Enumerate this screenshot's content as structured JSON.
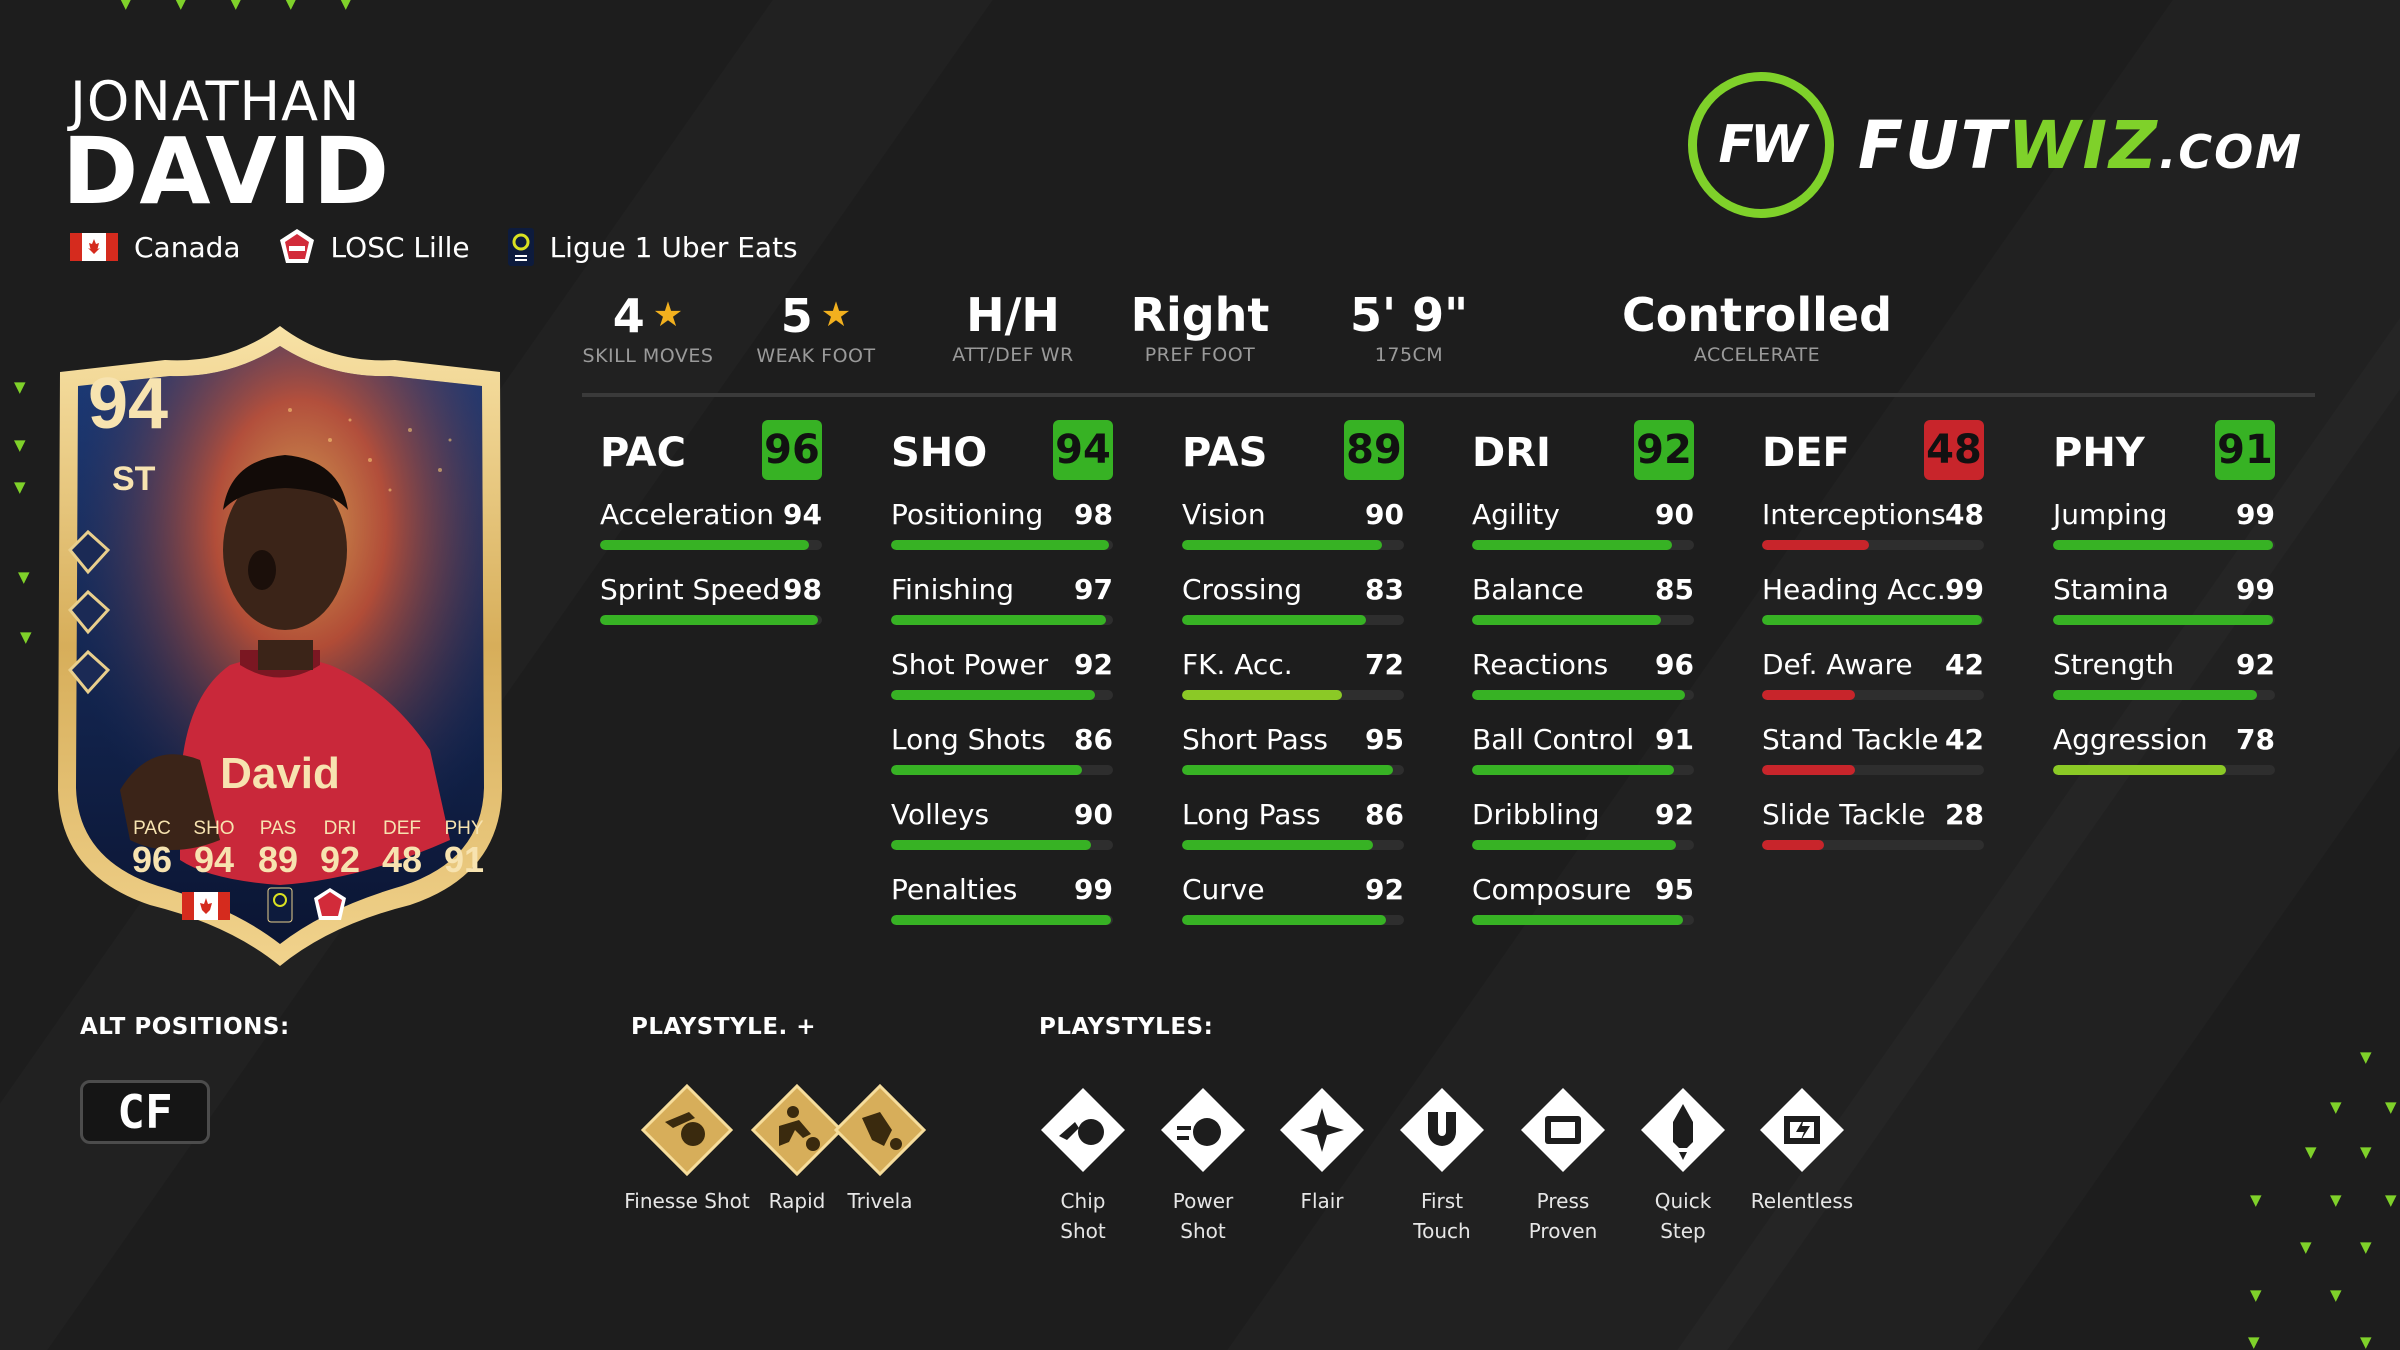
{
  "player": {
    "first_name": "JONATHAN",
    "last_name": "DAVID",
    "nation": "Canada",
    "club": "LOSC Lille",
    "league": "Ligue 1 Uber Eats"
  },
  "logo": {
    "part1": "FUT",
    "part2": "WIZ",
    "part3": ".COM",
    "mark": "FW"
  },
  "info": [
    {
      "value": "4",
      "star": true,
      "label": "SKILL MOVES"
    },
    {
      "value": "5",
      "star": true,
      "label": "WEAK FOOT"
    },
    {
      "value": "H/H",
      "star": false,
      "label": "ATT/DEF WR"
    },
    {
      "value": "Right",
      "star": false,
      "label": "PREF FOOT"
    },
    {
      "value": "5' 9\"",
      "star": false,
      "label": "175CM"
    },
    {
      "value": "Controlled",
      "star": false,
      "label": "ACCELERATE"
    }
  ],
  "colors": {
    "green": "#37b224",
    "lime": "#8bc926",
    "red": "#c8252b",
    "accent": "#7fd12a",
    "star": "#f2b01e"
  },
  "columns": [
    {
      "name": "PAC",
      "value": "96",
      "color": "green",
      "stats": [
        {
          "name": "Acceleration",
          "value": "94"
        },
        {
          "name": "Sprint Speed",
          "value": "98"
        }
      ]
    },
    {
      "name": "SHO",
      "value": "94",
      "color": "green",
      "stats": [
        {
          "name": "Positioning",
          "value": "98"
        },
        {
          "name": "Finishing",
          "value": "97"
        },
        {
          "name": "Shot Power",
          "value": "92"
        },
        {
          "name": "Long Shots",
          "value": "86"
        },
        {
          "name": "Volleys",
          "value": "90"
        },
        {
          "name": "Penalties",
          "value": "99"
        }
      ]
    },
    {
      "name": "PAS",
      "value": "89",
      "color": "green",
      "stats": [
        {
          "name": "Vision",
          "value": "90"
        },
        {
          "name": "Crossing",
          "value": "83"
        },
        {
          "name": "FK. Acc.",
          "value": "72"
        },
        {
          "name": "Short Pass",
          "value": "95"
        },
        {
          "name": "Long Pass",
          "value": "86"
        },
        {
          "name": "Curve",
          "value": "92"
        }
      ]
    },
    {
      "name": "DRI",
      "value": "92",
      "color": "green",
      "stats": [
        {
          "name": "Agility",
          "value": "90"
        },
        {
          "name": "Balance",
          "value": "85"
        },
        {
          "name": "Reactions",
          "value": "96"
        },
        {
          "name": "Ball Control",
          "value": "91"
        },
        {
          "name": "Dribbling",
          "value": "92"
        },
        {
          "name": "Composure",
          "value": "95"
        }
      ]
    },
    {
      "name": "DEF",
      "value": "48",
      "color": "red",
      "stats": [
        {
          "name": "Interceptions",
          "value": "48"
        },
        {
          "name": "Heading Acc.",
          "value": "99"
        },
        {
          "name": "Def. Aware",
          "value": "42"
        },
        {
          "name": "Stand Tackle",
          "value": "42"
        },
        {
          "name": "Slide Tackle",
          "value": "28"
        }
      ]
    },
    {
      "name": "PHY",
      "value": "91",
      "color": "green",
      "stats": [
        {
          "name": "Jumping",
          "value": "99"
        },
        {
          "name": "Stamina",
          "value": "99"
        },
        {
          "name": "Strength",
          "value": "92"
        },
        {
          "name": "Aggression",
          "value": "78"
        }
      ]
    }
  ],
  "card": {
    "rating": "94",
    "position": "ST",
    "name": "David",
    "stat_labels": [
      "PAC",
      "SHO",
      "PAS",
      "DRI",
      "DEF",
      "PHY"
    ],
    "stat_values": [
      "96",
      "94",
      "89",
      "92",
      "48",
      "91"
    ]
  },
  "sections": {
    "alt_positions": "ALT POSITIONS:",
    "playstyle_plus": "PLAYSTYLE. +",
    "playstyles": "PLAYSTYLES:"
  },
  "alt_positions": [
    "CF"
  ],
  "playstyle_plus": [
    {
      "label": "Finesse Shot",
      "icon": "finesse-shot-icon"
    },
    {
      "label": "Rapid",
      "icon": "rapid-icon"
    },
    {
      "label": "Trivela",
      "icon": "trivela-icon"
    }
  ],
  "playstyles": [
    {
      "line1": "Chip",
      "line2": "Shot",
      "icon": "chip-shot-icon"
    },
    {
      "line1": "Power",
      "line2": "Shot",
      "icon": "power-shot-icon"
    },
    {
      "line1": "Flair",
      "line2": "",
      "icon": "flair-icon"
    },
    {
      "line1": "First",
      "line2": "Touch",
      "icon": "first-touch-icon"
    },
    {
      "line1": "Press",
      "line2": "Proven",
      "icon": "press-proven-icon"
    },
    {
      "line1": "Quick",
      "line2": "Step",
      "icon": "quick-step-icon"
    },
    {
      "line1": "Relentless",
      "line2": "",
      "icon": "relentless-icon"
    }
  ]
}
